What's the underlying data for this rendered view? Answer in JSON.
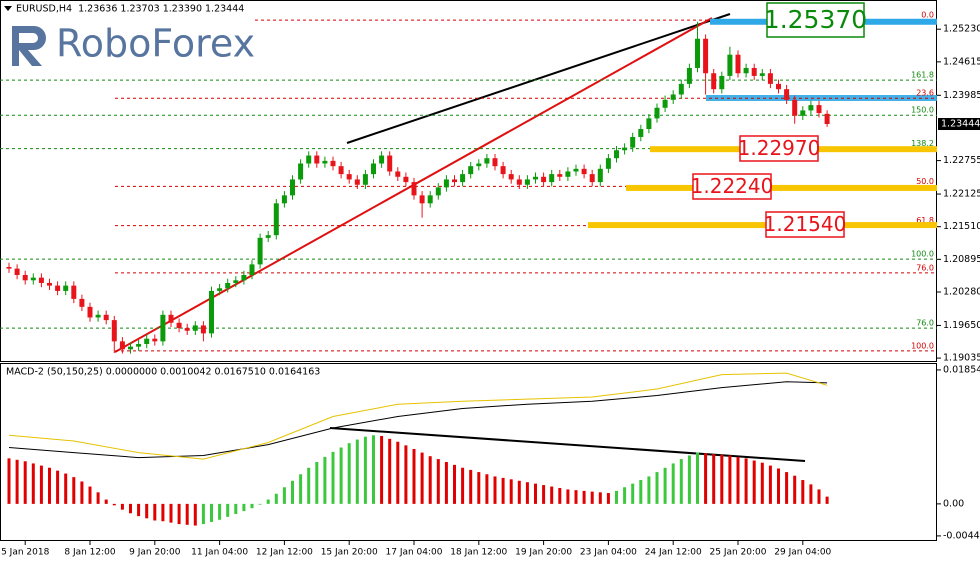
{
  "logo": "RoboForex",
  "chart_data": [
    {
      "type": "candlestick",
      "title": "EURUSD,H4  1.23636 1.23703 1.23390 1.23444",
      "categories": [
        null,
        null,
        "5 Jan 2018",
        null,
        null,
        null,
        null,
        null,
        null,
        null,
        "8 Jan 12:00",
        null,
        null,
        null,
        null,
        null,
        null,
        null,
        "9 Jan 20:00",
        null,
        null,
        null,
        null,
        null,
        null,
        null,
        "11 Jan 04:00",
        null,
        null,
        null,
        null,
        null,
        null,
        null,
        "12 Jan 12:00",
        null,
        null,
        null,
        null,
        null,
        null,
        null,
        "15 Jan 20:00",
        null,
        null,
        null,
        null,
        null,
        null,
        null,
        "17 Jan 04:00",
        null,
        null,
        null,
        null,
        null,
        null,
        null,
        "18 Jan 12:00",
        null,
        null,
        null,
        null,
        null,
        null,
        null,
        "19 Jan 20:00",
        null,
        null,
        null,
        null,
        null,
        null,
        null,
        "23 Jan 04:00",
        null,
        null,
        null,
        null,
        null,
        null,
        null,
        "24 Jan 12:00",
        null,
        null,
        null,
        null,
        null,
        null,
        null,
        "25 Jan 20:00",
        null,
        null,
        null,
        null,
        null,
        null,
        null,
        "29 Jan 04:00",
        null,
        null,
        null
      ],
      "open": [
        1.2075,
        1.2072,
        1.206,
        1.205,
        1.2055,
        1.2045,
        1.204,
        1.203,
        1.204,
        1.2015,
        1.2,
        1.198,
        1.1985,
        1.1975,
        1.1935,
        1.192,
        1.1925,
        1.193,
        1.194,
        1.1935,
        1.1985,
        1.197,
        1.196,
        1.1955,
        1.1965,
        1.195,
        1.203,
        1.2035,
        1.2045,
        1.205,
        1.206,
        1.208,
        1.213,
        1.2135,
        1.2195,
        1.221,
        1.224,
        1.227,
        1.2285,
        1.227,
        1.2275,
        1.2265,
        1.225,
        1.224,
        1.223,
        1.225,
        1.227,
        1.2285,
        1.2255,
        1.2245,
        1.2235,
        1.221,
        1.2195,
        1.221,
        1.2225,
        1.224,
        1.2235,
        1.225,
        1.2265,
        1.227,
        1.228,
        1.2265,
        1.225,
        1.224,
        1.223,
        1.224,
        1.2245,
        1.2235,
        1.225,
        1.2245,
        1.2255,
        1.226,
        1.225,
        1.2235,
        1.226,
        1.228,
        1.2295,
        1.23,
        1.232,
        1.2335,
        1.2355,
        1.2375,
        1.239,
        1.24,
        1.242,
        1.245,
        1.2505,
        1.244,
        1.241,
        1.2435,
        1.2475,
        1.244,
        1.245,
        1.2435,
        1.244,
        1.242,
        1.241,
        1.239,
        1.236,
        1.237,
        1.238,
        1.23636
      ],
      "high": [
        1.2083,
        1.208,
        1.2068,
        1.2063,
        1.2063,
        1.2053,
        1.2048,
        1.2048,
        1.2048,
        1.2023,
        1.2008,
        1.1993,
        1.1993,
        1.1983,
        1.1943,
        1.1933,
        1.1938,
        1.1948,
        1.1948,
        1.1993,
        1.1993,
        1.1978,
        1.1968,
        1.1973,
        1.1973,
        1.2038,
        1.2043,
        1.2053,
        1.2058,
        1.2068,
        1.2088,
        1.2138,
        1.2143,
        1.2203,
        1.2218,
        1.2248,
        1.2278,
        1.2293,
        1.2293,
        1.2283,
        1.2283,
        1.2273,
        1.2258,
        1.2248,
        1.2258,
        1.2278,
        1.2293,
        1.2293,
        1.2263,
        1.2253,
        1.2243,
        1.2218,
        1.2218,
        1.2233,
        1.2248,
        1.2248,
        1.2258,
        1.2273,
        1.2278,
        1.2288,
        1.2288,
        1.2273,
        1.2258,
        1.2248,
        1.2248,
        1.2253,
        1.2253,
        1.2258,
        1.2258,
        1.2263,
        1.2268,
        1.2268,
        1.2258,
        1.2268,
        1.2288,
        1.2303,
        1.2308,
        1.2328,
        1.2343,
        1.2363,
        1.2383,
        1.2398,
        1.2408,
        1.2428,
        1.2458,
        1.2537,
        1.2513,
        1.2448,
        1.2443,
        1.249,
        1.2483,
        1.2458,
        1.2458,
        1.2448,
        1.2448,
        1.2428,
        1.2418,
        1.2398,
        1.2378,
        1.2388,
        1.2388,
        1.23703
      ],
      "low": [
        1.2064,
        1.2052,
        1.2042,
        1.2042,
        1.2037,
        1.2032,
        1.2022,
        1.2022,
        1.2007,
        1.1992,
        1.1972,
        1.1972,
        1.1967,
        1.1913,
        1.1912,
        1.1912,
        1.1917,
        1.1922,
        1.1927,
        1.1927,
        1.1962,
        1.1952,
        1.1947,
        1.1947,
        1.1935,
        1.1942,
        1.2022,
        1.2027,
        1.2037,
        1.2042,
        1.2052,
        1.2072,
        1.2122,
        1.2127,
        1.2187,
        1.2202,
        1.2232,
        1.2262,
        1.2262,
        1.2262,
        1.2257,
        1.2242,
        1.2232,
        1.2222,
        1.2222,
        1.2242,
        1.2262,
        1.2247,
        1.2237,
        1.2227,
        1.2202,
        1.2168,
        1.2187,
        1.2202,
        1.2217,
        1.2227,
        1.2227,
        1.2242,
        1.2257,
        1.2262,
        1.2257,
        1.2242,
        1.2232,
        1.2222,
        1.2222,
        1.2232,
        1.2227,
        1.2227,
        1.2237,
        1.2237,
        1.2247,
        1.2242,
        1.2227,
        1.2227,
        1.2252,
        1.2272,
        1.2287,
        1.2292,
        1.2312,
        1.2327,
        1.2347,
        1.2367,
        1.2382,
        1.2392,
        1.2412,
        1.2442,
        1.24,
        1.2402,
        1.2402,
        1.2427,
        1.2432,
        1.2432,
        1.2427,
        1.2427,
        1.2412,
        1.2402,
        1.2382,
        1.2345,
        1.2352,
        1.2362,
        1.2357,
        1.2339
      ],
      "close": [
        1.2072,
        1.206,
        1.205,
        1.2055,
        1.2045,
        1.204,
        1.203,
        1.204,
        1.2015,
        1.2,
        1.198,
        1.1985,
        1.1975,
        1.1935,
        1.192,
        1.1925,
        1.193,
        1.194,
        1.1935,
        1.1985,
        1.197,
        1.196,
        1.1955,
        1.1965,
        1.195,
        1.203,
        1.2035,
        1.2045,
        1.205,
        1.206,
        1.208,
        1.213,
        1.2135,
        1.2195,
        1.221,
        1.224,
        1.227,
        1.2285,
        1.227,
        1.2275,
        1.2265,
        1.225,
        1.224,
        1.223,
        1.225,
        1.227,
        1.2285,
        1.2255,
        1.2245,
        1.2235,
        1.221,
        1.2195,
        1.221,
        1.2225,
        1.224,
        1.2235,
        1.225,
        1.2265,
        1.227,
        1.228,
        1.2265,
        1.225,
        1.224,
        1.223,
        1.224,
        1.2245,
        1.2235,
        1.225,
        1.2245,
        1.2255,
        1.226,
        1.225,
        1.2235,
        1.226,
        1.228,
        1.2295,
        1.23,
        1.232,
        1.2335,
        1.2355,
        1.2375,
        1.239,
        1.24,
        1.242,
        1.245,
        1.2505,
        1.244,
        1.241,
        1.2435,
        1.2475,
        1.244,
        1.245,
        1.2435,
        1.244,
        1.242,
        1.241,
        1.239,
        1.236,
        1.237,
        1.238,
        1.2365,
        1.23444
      ],
      "up_color": "#0a9a0a",
      "down_color": "#e8141b",
      "ylim": [
        1.1898,
        1.2578
      ],
      "yticks": [
        {
          "value": 1.2523,
          "label": "1.25230"
        },
        {
          "value": 1.24615,
          "label": "1.24615"
        },
        {
          "value": 1.23985,
          "label": "1.23985"
        },
        {
          "value": 1.22755,
          "label": "1.22755"
        },
        {
          "value": 1.22125,
          "label": "1.22125"
        },
        {
          "value": 1.2151,
          "label": "1.21510"
        },
        {
          "value": 1.20895,
          "label": "1.20895"
        },
        {
          "value": 1.2028,
          "label": "1.20280"
        },
        {
          "value": 1.1965,
          "label": "1.19650"
        },
        {
          "value": 1.19035,
          "label": "1.19035"
        }
      ],
      "levels": [
        {
          "value": 1.254,
          "label": "0.0",
          "color": "#d40000"
        },
        {
          "value": 1.2427,
          "label": "161.8",
          "color": "#138a13"
        },
        {
          "value": 1.2393,
          "label": "23.6",
          "color": "#d40000"
        },
        {
          "value": 1.2361,
          "label": "150.0",
          "color": "#138a13"
        },
        {
          "value": 1.2298,
          "label": "138.2",
          "color": "#138a13"
        },
        {
          "value": 1.2227,
          "label": "50.0",
          "color": "#d40000"
        },
        {
          "value": 1.2153,
          "label": "61.8",
          "color": "#d40000"
        },
        {
          "value": 1.209,
          "label": "100.0",
          "color": "#138a13"
        },
        {
          "value": 1.2064,
          "label": "76.0",
          "color": "#d40000"
        },
        {
          "value": 1.196,
          "label": "76.0",
          "color": "#138a13"
        },
        {
          "value": 1.1917,
          "label": "100.0",
          "color": "#d40000"
        }
      ],
      "price_boxes": [
        {
          "value": 1.2537,
          "label": "1.25370",
          "color": "#0a8a0a",
          "zone_color": "#2ea8e6"
        },
        {
          "value": 1.2297,
          "label": "1.22970",
          "color": "#e8141b",
          "zone_color": "#f7c600"
        },
        {
          "value": 1.2224,
          "label": "1.22240",
          "color": "#e8141b",
          "zone_color": "#f7c600"
        },
        {
          "value": 1.2154,
          "label": "1.21540",
          "color": "#e8141b",
          "zone_color": "#f7c600"
        }
      ]
    },
    {
      "type": "macd",
      "title": "MACD-2 (50,150,25) 0.0000000 0.0010042 0.0167510 0.0164163",
      "histogram": {
        "up_color": "#3cc83c",
        "down_color": "#e00000",
        "values": [
          0.0063,
          0.0061,
          0.0059,
          0.0056,
          0.0053,
          0.005,
          0.0046,
          0.0042,
          0.0037,
          0.0031,
          0.0024,
          0.0016,
          0.0006,
          -0.0002,
          -0.0008,
          -0.0013,
          -0.0017,
          -0.002,
          -0.0023,
          -0.0024,
          -0.0026,
          -0.0028,
          -0.0029,
          -0.003,
          -0.0028,
          -0.0025,
          -0.0022,
          -0.0018,
          -0.0014,
          -0.001,
          -0.0006,
          -0.0001,
          0.0006,
          0.0014,
          0.0023,
          0.0032,
          0.0041,
          0.005,
          0.0058,
          0.0065,
          0.0072,
          0.0078,
          0.0084,
          0.0089,
          0.0093,
          0.0095,
          0.0094,
          0.009,
          0.0086,
          0.0081,
          0.0076,
          0.0071,
          0.0066,
          0.0062,
          0.0058,
          0.0054,
          0.005,
          0.0047,
          0.0044,
          0.0041,
          0.0038,
          0.0036,
          0.0034,
          0.0032,
          0.003,
          0.0028,
          0.0026,
          0.0024,
          0.0022,
          0.002,
          0.0019,
          0.0018,
          0.0017,
          0.0016,
          0.0015,
          0.0018,
          0.0023,
          0.0028,
          0.0033,
          0.0038,
          0.0044,
          0.005,
          0.0056,
          0.0062,
          0.0067,
          0.0071,
          0.007,
          0.0069,
          0.0068,
          0.0067,
          0.0065,
          0.0063,
          0.006,
          0.0057,
          0.0053,
          0.0049,
          0.0044,
          0.0039,
          0.0033,
          0.0027,
          0.002,
          0.0010042
        ]
      },
      "series": [
        {
          "color": "#000000",
          "x": [
            0,
            8,
            16,
            24,
            32,
            40,
            48,
            56,
            64,
            72,
            80,
            88,
            96,
            101
          ],
          "values": [
            0.0078,
            0.0071,
            0.0064,
            0.0067,
            0.0082,
            0.0105,
            0.0121,
            0.0132,
            0.0138,
            0.0142,
            0.015,
            0.0161,
            0.0169,
            0.016751
          ]
        },
        {
          "color": "#e6c200",
          "x": [
            0,
            8,
            16,
            24,
            32,
            40,
            48,
            56,
            64,
            72,
            80,
            88,
            96,
            101
          ],
          "values": [
            0.0095,
            0.0087,
            0.0071,
            0.0062,
            0.0085,
            0.0121,
            0.0138,
            0.0142,
            0.0145,
            0.0148,
            0.0159,
            0.0179,
            0.0181,
            0.0164163
          ]
        }
      ],
      "ylim": [
        -0.005,
        0.0195
      ],
      "yticks": [
        0.018541,
        {
          "value": 0,
          "label": "0.00"
        },
        -0.004433
      ]
    }
  ]
}
